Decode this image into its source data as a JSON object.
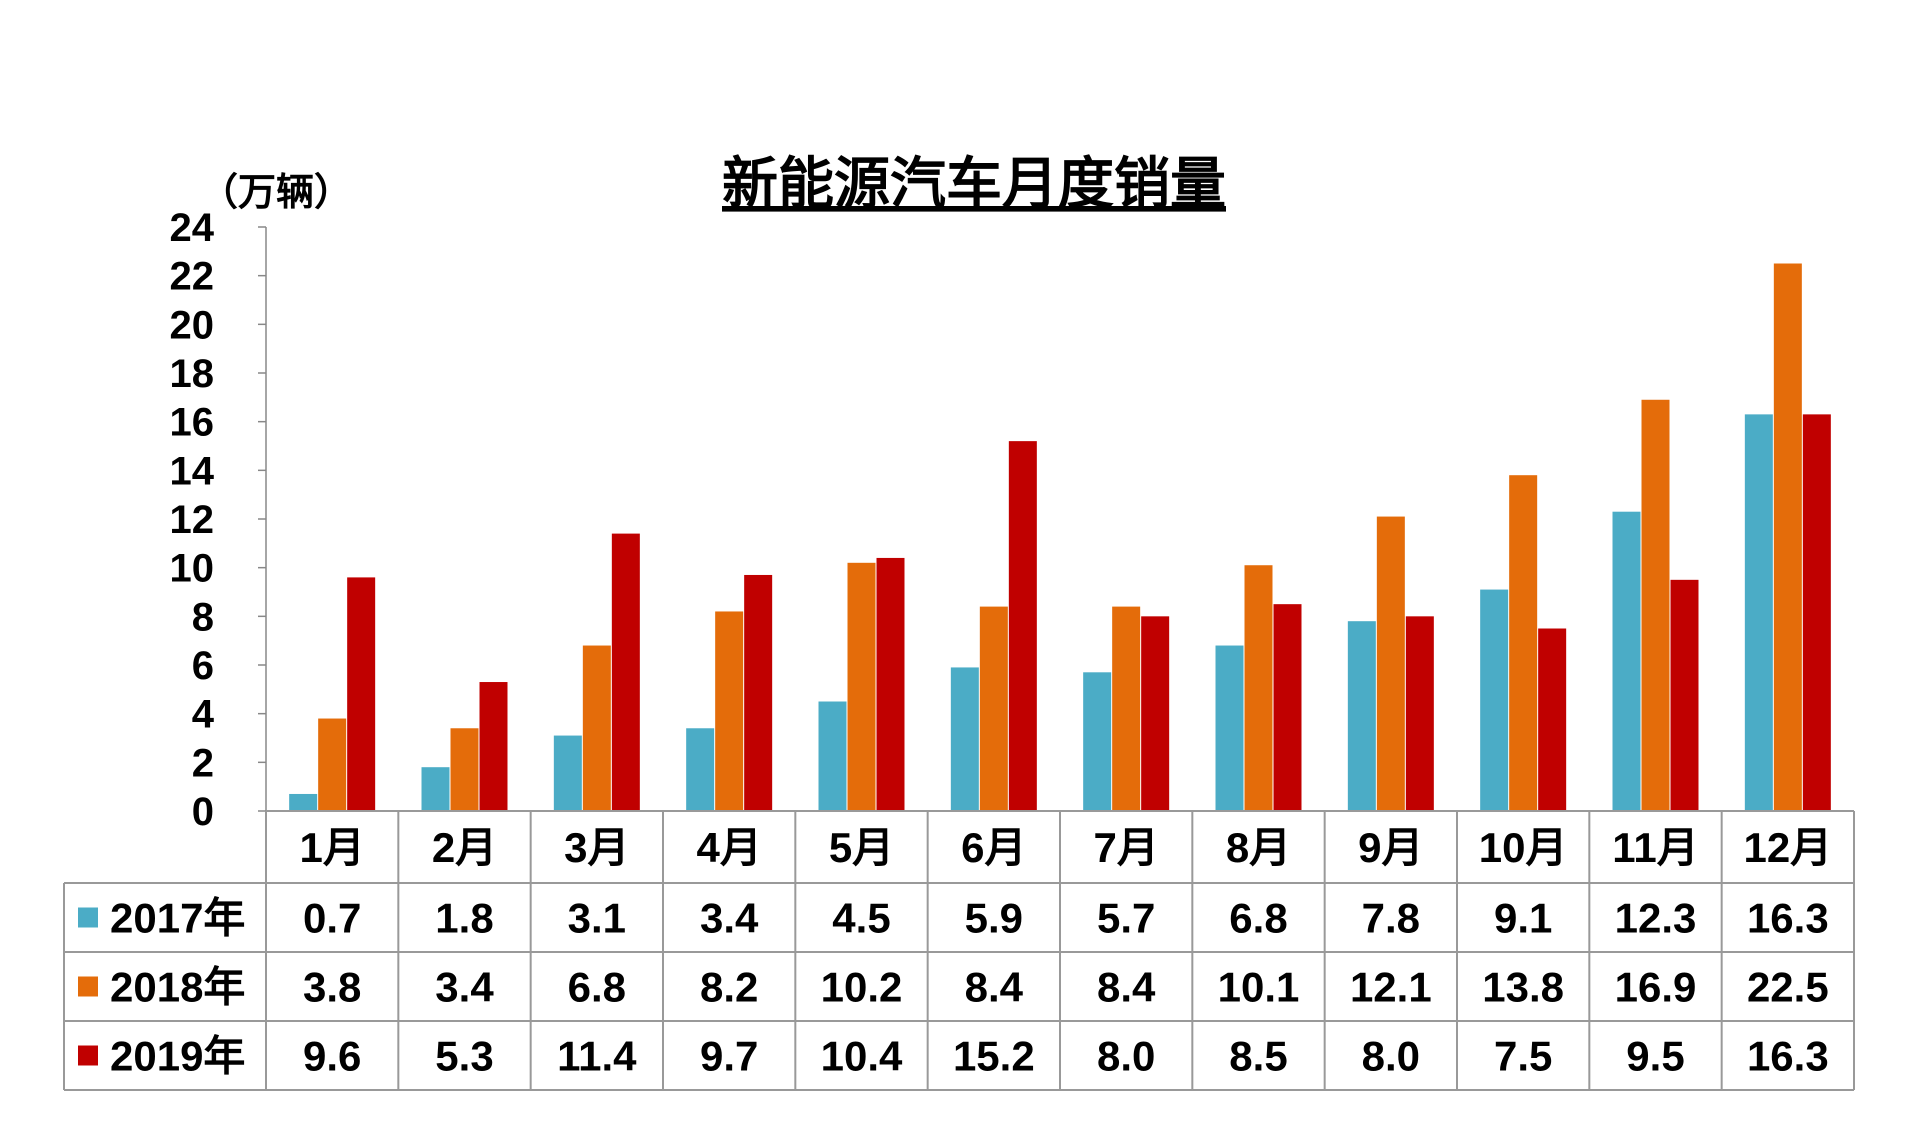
{
  "chart_data": {
    "type": "bar",
    "title": "新能源汽车月度销量",
    "ylabel": "（万辆）",
    "xlabel": "",
    "ylim": [
      0,
      24
    ],
    "yticks": [
      0,
      2,
      4,
      6,
      8,
      10,
      12,
      14,
      16,
      18,
      20,
      22,
      24
    ],
    "grid": false,
    "legend": "table-left",
    "categories": [
      "1月",
      "2月",
      "3月",
      "4月",
      "5月",
      "6月",
      "7月",
      "8月",
      "9月",
      "10月",
      "11月",
      "12月"
    ],
    "series": [
      {
        "name": "2017年",
        "color": "#4BACC6",
        "values": [
          0.7,
          1.8,
          3.1,
          3.4,
          4.5,
          5.9,
          5.7,
          6.8,
          7.8,
          9.1,
          12.3,
          16.3
        ]
      },
      {
        "name": "2018年",
        "color": "#E46C0A",
        "values": [
          3.8,
          3.4,
          6.8,
          8.2,
          10.2,
          8.4,
          8.4,
          10.1,
          12.1,
          13.8,
          16.9,
          22.5
        ]
      },
      {
        "name": "2019年",
        "color": "#C00000",
        "values": [
          9.6,
          5.3,
          11.4,
          9.7,
          10.4,
          15.2,
          8.0,
          8.5,
          8.0,
          7.5,
          9.5,
          16.3
        ]
      }
    ],
    "table_labels": {
      "2017年": [
        "0.7",
        "1.8",
        "3.1",
        "3.4",
        "4.5",
        "5.9",
        "5.7",
        "6.8",
        "7.8",
        "9.1",
        "12.3",
        "16.3"
      ],
      "2018年": [
        "3.8",
        "3.4",
        "6.8",
        "8.2",
        "10.2",
        "8.4",
        "8.4",
        "10.1",
        "12.1",
        "13.8",
        "16.9",
        "22.5"
      ],
      "2019年": [
        "9.6",
        "5.3",
        "11.4",
        "9.7",
        "10.4",
        "15.2",
        "8.0",
        "8.5",
        "8.0",
        "7.5",
        "9.5",
        "16.3"
      ]
    }
  }
}
